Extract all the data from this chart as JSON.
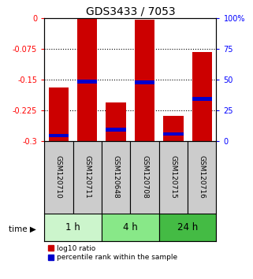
{
  "title": "GDS3433 / 7053",
  "samples": [
    "GSM120710",
    "GSM120711",
    "GSM120648",
    "GSM120708",
    "GSM120715",
    "GSM120716"
  ],
  "groups": [
    {
      "label": "1 h",
      "indices": [
        0,
        1
      ]
    },
    {
      "label": "4 h",
      "indices": [
        2,
        3
      ]
    },
    {
      "label": "24 h",
      "indices": [
        4,
        5
      ]
    }
  ],
  "bar_top": [
    -0.17,
    -0.002,
    -0.207,
    -0.003,
    -0.238,
    -0.082
  ],
  "bar_bottom": [
    -0.3,
    -0.3,
    -0.3,
    -0.3,
    -0.3,
    -0.3
  ],
  "blue_marker": [
    -0.287,
    -0.155,
    -0.272,
    -0.157,
    -0.283,
    -0.197
  ],
  "ylim": [
    -0.3,
    0.0
  ],
  "yticks_left": [
    0,
    -0.075,
    -0.15,
    -0.225,
    -0.3
  ],
  "yticks_right": [
    100,
    75,
    50,
    25,
    0
  ],
  "bar_color": "#cc0000",
  "blue_color": "#0000cc",
  "label_area_color": "#cccccc",
  "group_colors": [
    "#ccf5cc",
    "#88e888",
    "#44bb44"
  ],
  "legend_red": "log10 ratio",
  "legend_blue": "percentile rank within the sample",
  "bar_width": 0.7,
  "title_fontsize": 10,
  "tick_fontsize": 7,
  "sample_fontsize": 6.5
}
